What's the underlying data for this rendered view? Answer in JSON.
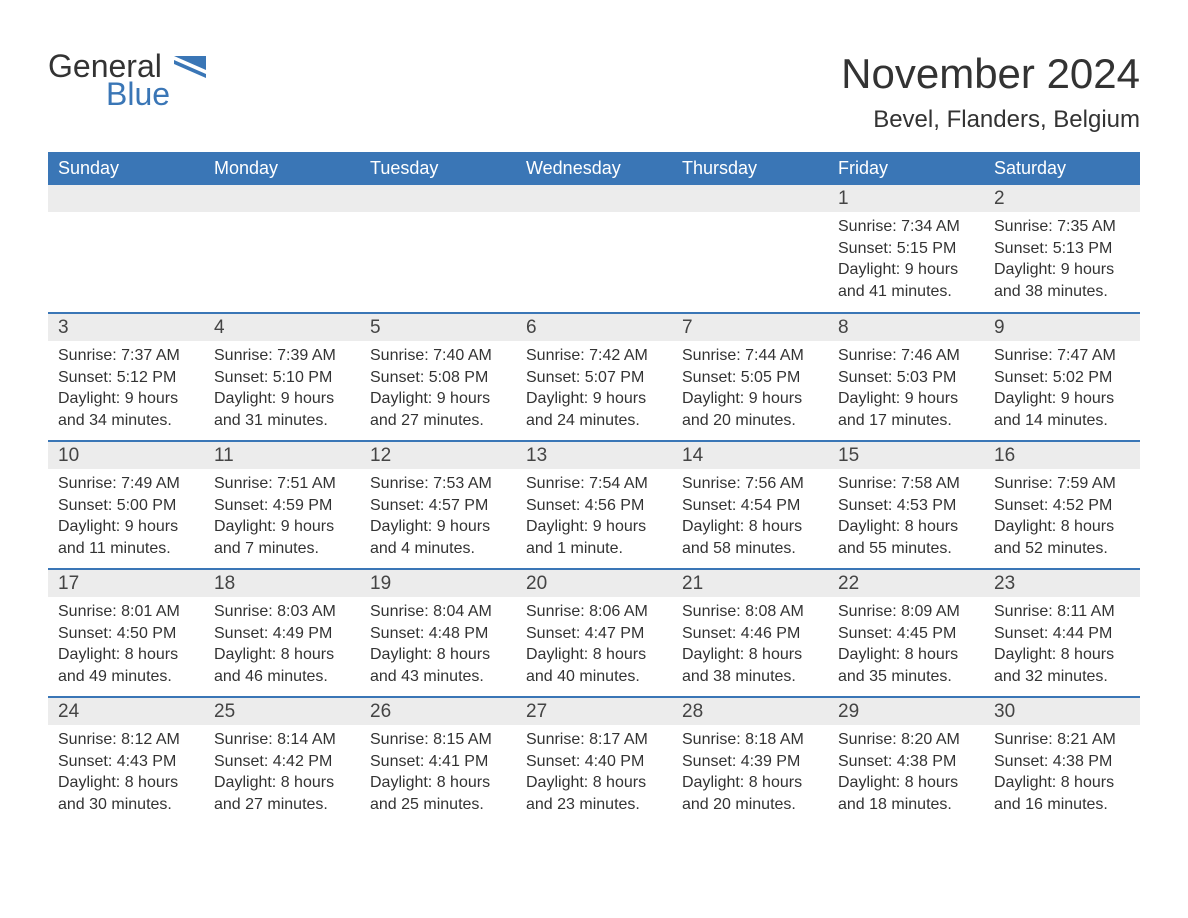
{
  "logo": {
    "word1": "General",
    "word2": "Blue",
    "flag_color": "#3a76b6"
  },
  "title": "November 2024",
  "location": "Bevel, Flanders, Belgium",
  "colors": {
    "header_bg": "#3a76b6",
    "header_text": "#ffffff",
    "band_bg": "#ececec",
    "text": "#333333",
    "row_divider": "#3a76b6",
    "page_bg": "#ffffff"
  },
  "fonts": {
    "body_family": "Arial",
    "title_size_pt": 32,
    "header_size_pt": 14,
    "cell_size_pt": 12
  },
  "day_headers": [
    "Sunday",
    "Monday",
    "Tuesday",
    "Wednesday",
    "Thursday",
    "Friday",
    "Saturday"
  ],
  "weeks": [
    [
      null,
      null,
      null,
      null,
      null,
      {
        "n": "1",
        "sunrise": "Sunrise: 7:34 AM",
        "sunset": "Sunset: 5:15 PM",
        "d1": "Daylight: 9 hours",
        "d2": "and 41 minutes."
      },
      {
        "n": "2",
        "sunrise": "Sunrise: 7:35 AM",
        "sunset": "Sunset: 5:13 PM",
        "d1": "Daylight: 9 hours",
        "d2": "and 38 minutes."
      }
    ],
    [
      {
        "n": "3",
        "sunrise": "Sunrise: 7:37 AM",
        "sunset": "Sunset: 5:12 PM",
        "d1": "Daylight: 9 hours",
        "d2": "and 34 minutes."
      },
      {
        "n": "4",
        "sunrise": "Sunrise: 7:39 AM",
        "sunset": "Sunset: 5:10 PM",
        "d1": "Daylight: 9 hours",
        "d2": "and 31 minutes."
      },
      {
        "n": "5",
        "sunrise": "Sunrise: 7:40 AM",
        "sunset": "Sunset: 5:08 PM",
        "d1": "Daylight: 9 hours",
        "d2": "and 27 minutes."
      },
      {
        "n": "6",
        "sunrise": "Sunrise: 7:42 AM",
        "sunset": "Sunset: 5:07 PM",
        "d1": "Daylight: 9 hours",
        "d2": "and 24 minutes."
      },
      {
        "n": "7",
        "sunrise": "Sunrise: 7:44 AM",
        "sunset": "Sunset: 5:05 PM",
        "d1": "Daylight: 9 hours",
        "d2": "and 20 minutes."
      },
      {
        "n": "8",
        "sunrise": "Sunrise: 7:46 AM",
        "sunset": "Sunset: 5:03 PM",
        "d1": "Daylight: 9 hours",
        "d2": "and 17 minutes."
      },
      {
        "n": "9",
        "sunrise": "Sunrise: 7:47 AM",
        "sunset": "Sunset: 5:02 PM",
        "d1": "Daylight: 9 hours",
        "d2": "and 14 minutes."
      }
    ],
    [
      {
        "n": "10",
        "sunrise": "Sunrise: 7:49 AM",
        "sunset": "Sunset: 5:00 PM",
        "d1": "Daylight: 9 hours",
        "d2": "and 11 minutes."
      },
      {
        "n": "11",
        "sunrise": "Sunrise: 7:51 AM",
        "sunset": "Sunset: 4:59 PM",
        "d1": "Daylight: 9 hours",
        "d2": "and 7 minutes."
      },
      {
        "n": "12",
        "sunrise": "Sunrise: 7:53 AM",
        "sunset": "Sunset: 4:57 PM",
        "d1": "Daylight: 9 hours",
        "d2": "and 4 minutes."
      },
      {
        "n": "13",
        "sunrise": "Sunrise: 7:54 AM",
        "sunset": "Sunset: 4:56 PM",
        "d1": "Daylight: 9 hours",
        "d2": "and 1 minute."
      },
      {
        "n": "14",
        "sunrise": "Sunrise: 7:56 AM",
        "sunset": "Sunset: 4:54 PM",
        "d1": "Daylight: 8 hours",
        "d2": "and 58 minutes."
      },
      {
        "n": "15",
        "sunrise": "Sunrise: 7:58 AM",
        "sunset": "Sunset: 4:53 PM",
        "d1": "Daylight: 8 hours",
        "d2": "and 55 minutes."
      },
      {
        "n": "16",
        "sunrise": "Sunrise: 7:59 AM",
        "sunset": "Sunset: 4:52 PM",
        "d1": "Daylight: 8 hours",
        "d2": "and 52 minutes."
      }
    ],
    [
      {
        "n": "17",
        "sunrise": "Sunrise: 8:01 AM",
        "sunset": "Sunset: 4:50 PM",
        "d1": "Daylight: 8 hours",
        "d2": "and 49 minutes."
      },
      {
        "n": "18",
        "sunrise": "Sunrise: 8:03 AM",
        "sunset": "Sunset: 4:49 PM",
        "d1": "Daylight: 8 hours",
        "d2": "and 46 minutes."
      },
      {
        "n": "19",
        "sunrise": "Sunrise: 8:04 AM",
        "sunset": "Sunset: 4:48 PM",
        "d1": "Daylight: 8 hours",
        "d2": "and 43 minutes."
      },
      {
        "n": "20",
        "sunrise": "Sunrise: 8:06 AM",
        "sunset": "Sunset: 4:47 PM",
        "d1": "Daylight: 8 hours",
        "d2": "and 40 minutes."
      },
      {
        "n": "21",
        "sunrise": "Sunrise: 8:08 AM",
        "sunset": "Sunset: 4:46 PM",
        "d1": "Daylight: 8 hours",
        "d2": "and 38 minutes."
      },
      {
        "n": "22",
        "sunrise": "Sunrise: 8:09 AM",
        "sunset": "Sunset: 4:45 PM",
        "d1": "Daylight: 8 hours",
        "d2": "and 35 minutes."
      },
      {
        "n": "23",
        "sunrise": "Sunrise: 8:11 AM",
        "sunset": "Sunset: 4:44 PM",
        "d1": "Daylight: 8 hours",
        "d2": "and 32 minutes."
      }
    ],
    [
      {
        "n": "24",
        "sunrise": "Sunrise: 8:12 AM",
        "sunset": "Sunset: 4:43 PM",
        "d1": "Daylight: 8 hours",
        "d2": "and 30 minutes."
      },
      {
        "n": "25",
        "sunrise": "Sunrise: 8:14 AM",
        "sunset": "Sunset: 4:42 PM",
        "d1": "Daylight: 8 hours",
        "d2": "and 27 minutes."
      },
      {
        "n": "26",
        "sunrise": "Sunrise: 8:15 AM",
        "sunset": "Sunset: 4:41 PM",
        "d1": "Daylight: 8 hours",
        "d2": "and 25 minutes."
      },
      {
        "n": "27",
        "sunrise": "Sunrise: 8:17 AM",
        "sunset": "Sunset: 4:40 PM",
        "d1": "Daylight: 8 hours",
        "d2": "and 23 minutes."
      },
      {
        "n": "28",
        "sunrise": "Sunrise: 8:18 AM",
        "sunset": "Sunset: 4:39 PM",
        "d1": "Daylight: 8 hours",
        "d2": "and 20 minutes."
      },
      {
        "n": "29",
        "sunrise": "Sunrise: 8:20 AM",
        "sunset": "Sunset: 4:38 PM",
        "d1": "Daylight: 8 hours",
        "d2": "and 18 minutes."
      },
      {
        "n": "30",
        "sunrise": "Sunrise: 8:21 AM",
        "sunset": "Sunset: 4:38 PM",
        "d1": "Daylight: 8 hours",
        "d2": "and 16 minutes."
      }
    ]
  ]
}
